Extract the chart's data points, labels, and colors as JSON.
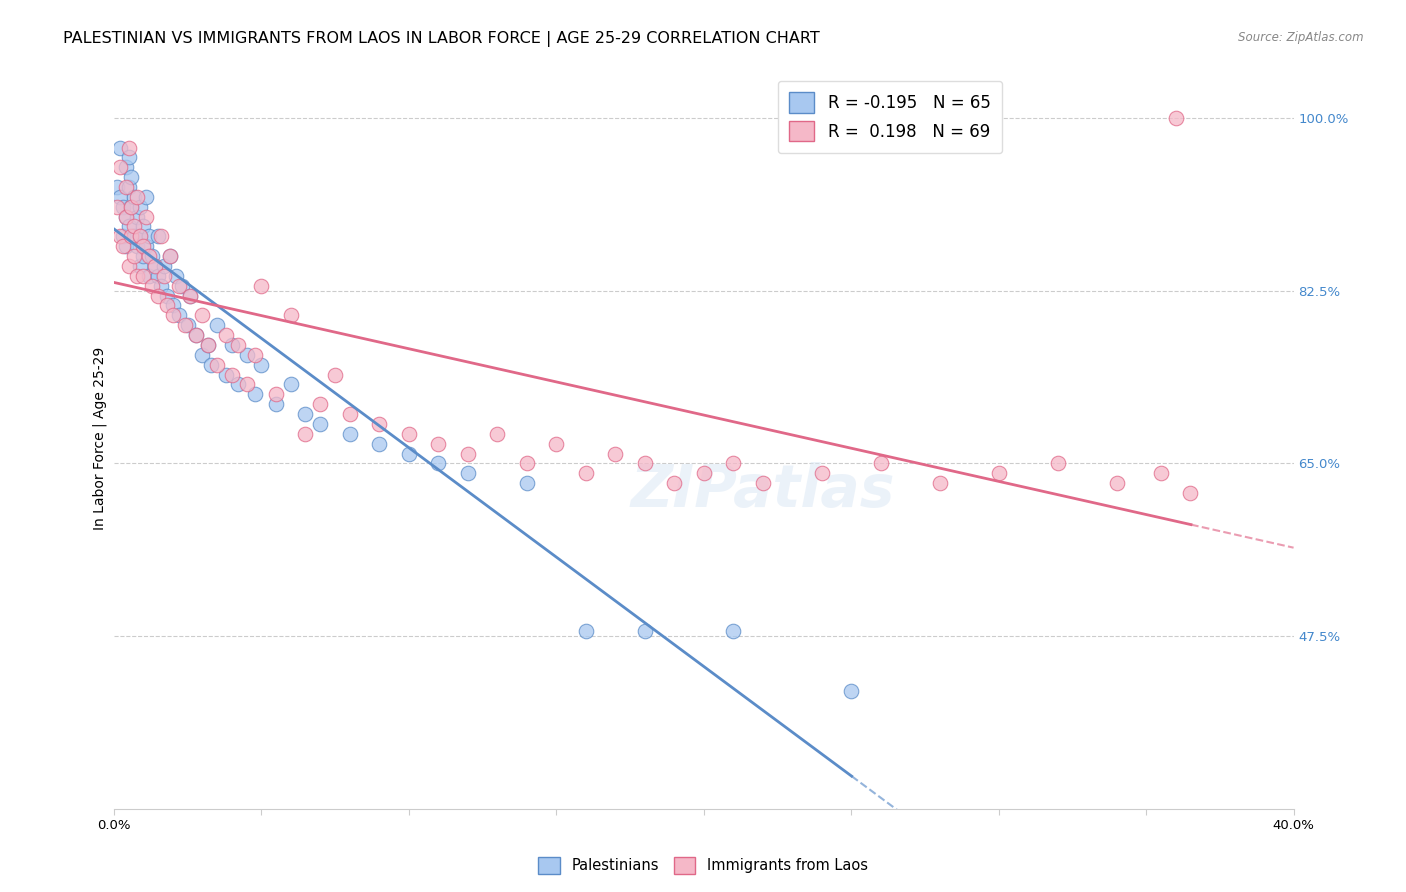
{
  "title": "PALESTINIAN VS IMMIGRANTS FROM LAOS IN LABOR FORCE | AGE 25-29 CORRELATION CHART",
  "source": "Source: ZipAtlas.com",
  "ylabel": "In Labor Force | Age 25-29",
  "xlim": [
    0.0,
    0.4
  ],
  "ylim": [
    0.3,
    1.05
  ],
  "blue_R": -0.195,
  "blue_N": 65,
  "pink_R": 0.198,
  "pink_N": 69,
  "blue_color": "#A8C8F0",
  "pink_color": "#F5B8C8",
  "blue_line_color": "#5B8CC8",
  "pink_line_color": "#E06888",
  "watermark": "ZIPatlas",
  "blue_scatter_x": [
    0.001,
    0.002,
    0.002,
    0.003,
    0.003,
    0.004,
    0.004,
    0.004,
    0.005,
    0.005,
    0.005,
    0.006,
    0.006,
    0.007,
    0.007,
    0.008,
    0.008,
    0.009,
    0.009,
    0.009,
    0.01,
    0.01,
    0.011,
    0.011,
    0.012,
    0.012,
    0.013,
    0.014,
    0.015,
    0.015,
    0.016,
    0.017,
    0.018,
    0.019,
    0.02,
    0.021,
    0.022,
    0.023,
    0.025,
    0.026,
    0.028,
    0.03,
    0.032,
    0.033,
    0.035,
    0.038,
    0.04,
    0.042,
    0.045,
    0.048,
    0.05,
    0.055,
    0.06,
    0.065,
    0.07,
    0.08,
    0.09,
    0.1,
    0.11,
    0.12,
    0.14,
    0.16,
    0.18,
    0.21,
    0.25
  ],
  "blue_scatter_y": [
    0.93,
    0.97,
    0.92,
    0.91,
    0.88,
    0.95,
    0.9,
    0.87,
    0.96,
    0.93,
    0.89,
    0.94,
    0.91,
    0.92,
    0.88,
    0.9,
    0.87,
    0.91,
    0.88,
    0.85,
    0.89,
    0.86,
    0.92,
    0.87,
    0.88,
    0.84,
    0.86,
    0.85,
    0.84,
    0.88,
    0.83,
    0.85,
    0.82,
    0.86,
    0.81,
    0.84,
    0.8,
    0.83,
    0.79,
    0.82,
    0.78,
    0.76,
    0.77,
    0.75,
    0.79,
    0.74,
    0.77,
    0.73,
    0.76,
    0.72,
    0.75,
    0.71,
    0.73,
    0.7,
    0.69,
    0.68,
    0.67,
    0.66,
    0.65,
    0.64,
    0.63,
    0.48,
    0.48,
    0.48,
    0.42
  ],
  "pink_scatter_x": [
    0.001,
    0.002,
    0.002,
    0.003,
    0.004,
    0.004,
    0.005,
    0.005,
    0.006,
    0.006,
    0.007,
    0.007,
    0.008,
    0.008,
    0.009,
    0.01,
    0.01,
    0.011,
    0.012,
    0.013,
    0.014,
    0.015,
    0.016,
    0.017,
    0.018,
    0.019,
    0.02,
    0.022,
    0.024,
    0.026,
    0.028,
    0.03,
    0.032,
    0.035,
    0.038,
    0.04,
    0.042,
    0.045,
    0.048,
    0.05,
    0.055,
    0.06,
    0.065,
    0.07,
    0.075,
    0.08,
    0.09,
    0.1,
    0.11,
    0.12,
    0.13,
    0.14,
    0.15,
    0.16,
    0.17,
    0.18,
    0.19,
    0.2,
    0.21,
    0.22,
    0.24,
    0.26,
    0.28,
    0.3,
    0.32,
    0.34,
    0.355,
    0.365,
    0.36
  ],
  "pink_scatter_y": [
    0.91,
    0.88,
    0.95,
    0.87,
    0.93,
    0.9,
    0.97,
    0.85,
    0.91,
    0.88,
    0.89,
    0.86,
    0.84,
    0.92,
    0.88,
    0.87,
    0.84,
    0.9,
    0.86,
    0.83,
    0.85,
    0.82,
    0.88,
    0.84,
    0.81,
    0.86,
    0.8,
    0.83,
    0.79,
    0.82,
    0.78,
    0.8,
    0.77,
    0.75,
    0.78,
    0.74,
    0.77,
    0.73,
    0.76,
    0.83,
    0.72,
    0.8,
    0.68,
    0.71,
    0.74,
    0.7,
    0.69,
    0.68,
    0.67,
    0.66,
    0.68,
    0.65,
    0.67,
    0.64,
    0.66,
    0.65,
    0.63,
    0.64,
    0.65,
    0.63,
    0.64,
    0.65,
    0.63,
    0.64,
    0.65,
    0.63,
    0.64,
    0.62,
    1.0
  ],
  "grid_color": "#cccccc",
  "background_color": "#ffffff",
  "title_fontsize": 11.5,
  "axis_label_fontsize": 10,
  "tick_fontsize": 9.5
}
